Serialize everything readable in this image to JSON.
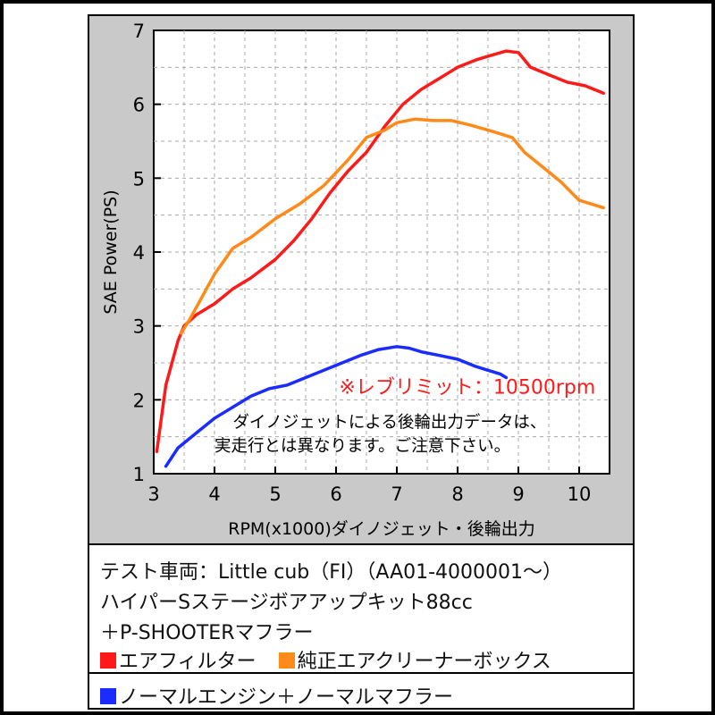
{
  "chart_data": {
    "type": "line",
    "xlabel": "RPM(x1000)ダイノジェット・後輪出力",
    "ylabel": "SAE Power(PS)",
    "xlim": [
      3,
      10.5
    ],
    "ylim": [
      1,
      7
    ],
    "xticks": [
      3,
      4,
      5,
      6,
      7,
      8,
      9,
      10
    ],
    "yticks": [
      1,
      2,
      3,
      4,
      5,
      6,
      7
    ],
    "grid": true,
    "series": [
      {
        "name": "エアフィルター",
        "color": "#ff1a1a",
        "x": [
          3.05,
          3.2,
          3.4,
          3.5,
          3.7,
          4.0,
          4.3,
          4.6,
          5.0,
          5.3,
          5.6,
          5.9,
          6.2,
          6.5,
          6.8,
          7.1,
          7.4,
          7.7,
          8.0,
          8.3,
          8.5,
          8.8,
          9.0,
          9.2,
          9.5,
          9.8,
          10.1,
          10.4
        ],
        "y": [
          1.3,
          2.2,
          2.8,
          3.0,
          3.15,
          3.3,
          3.5,
          3.65,
          3.9,
          4.15,
          4.45,
          4.8,
          5.1,
          5.35,
          5.7,
          6.0,
          6.2,
          6.35,
          6.5,
          6.6,
          6.65,
          6.72,
          6.7,
          6.5,
          6.4,
          6.3,
          6.25,
          6.15
        ]
      },
      {
        "name": "純正エアクリーナーボックス",
        "color": "#ff8a1a",
        "x": [
          3.45,
          3.6,
          3.8,
          4.0,
          4.3,
          4.6,
          5.0,
          5.4,
          5.8,
          6.2,
          6.5,
          6.8,
          7.0,
          7.3,
          7.6,
          7.9,
          8.2,
          8.5,
          8.7,
          8.9,
          9.1,
          9.4,
          9.7,
          10.0,
          10.4
        ],
        "y": [
          2.9,
          3.1,
          3.4,
          3.7,
          4.05,
          4.2,
          4.45,
          4.65,
          4.9,
          5.25,
          5.55,
          5.65,
          5.75,
          5.8,
          5.78,
          5.78,
          5.72,
          5.65,
          5.6,
          5.55,
          5.35,
          5.15,
          4.95,
          4.7,
          4.6
        ]
      },
      {
        "name": "ノーマルエンジン＋ノーマルマフラー",
        "color": "#1a2cff",
        "x": [
          3.2,
          3.4,
          3.7,
          4.0,
          4.3,
          4.6,
          4.9,
          5.2,
          5.5,
          5.8,
          6.1,
          6.4,
          6.7,
          7.0,
          7.2,
          7.4,
          7.7,
          8.0,
          8.3,
          8.5,
          8.7,
          8.8
        ],
        "y": [
          1.1,
          1.35,
          1.55,
          1.75,
          1.9,
          2.05,
          2.15,
          2.2,
          2.3,
          2.4,
          2.5,
          2.6,
          2.68,
          2.72,
          2.7,
          2.65,
          2.6,
          2.55,
          2.45,
          2.4,
          2.35,
          2.3
        ]
      }
    ],
    "annotations": [
      "※レブリミット：10500rpm",
      "ダイノジェットによる後輪出力データは、",
      "実走行とは異なります。ご注意下さい。"
    ]
  },
  "legend": {
    "vehicle": "テスト車両：Little cub（FI）（AA01-4000001～）",
    "kit": "ハイパーSステージボアアップキット88cc",
    "muffler": "＋P-SHOOTERマフラー",
    "items": [
      {
        "label": "エアフィルター",
        "color": "#ff1a1a"
      },
      {
        "label": "純正エアクリーナーボックス",
        "color": "#ff8a1a"
      },
      {
        "label": "ノーマルエンジン＋ノーマルマフラー",
        "color": "#1a2cff"
      }
    ]
  }
}
